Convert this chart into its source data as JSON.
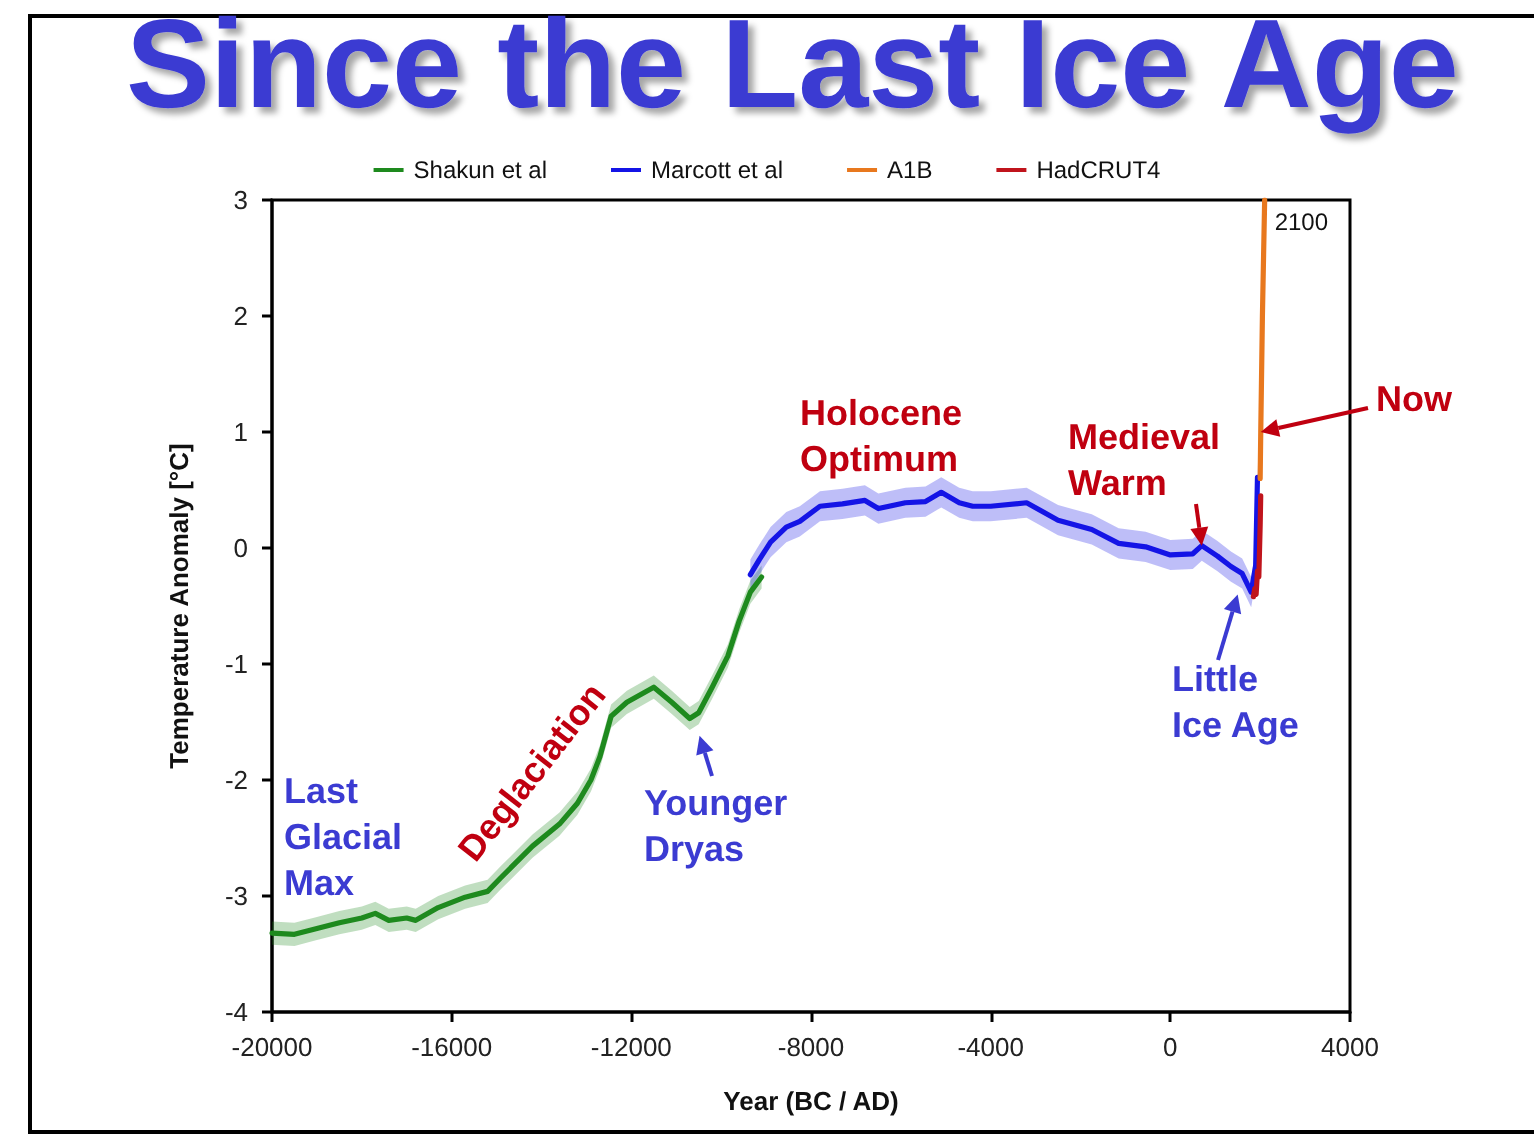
{
  "chart_data": {
    "type": "line",
    "title": "Since the Last Ice Age",
    "xlabel": "Year (BC / AD)",
    "ylabel": "Temperature Anomaly [°C]",
    "xlim": [
      -20000,
      4000
    ],
    "xticks": [
      -20000,
      -16000,
      -12000,
      -8000,
      -4000,
      0,
      4000
    ],
    "ylim": [
      -4,
      3
    ],
    "yticks": [
      -4,
      -3,
      -2,
      -1,
      0,
      1,
      2,
      3
    ],
    "grid": false,
    "legend": "top",
    "marker": "none",
    "line_style": "solid",
    "annotations": [
      "Last Glacial Max",
      "Deglaciation",
      {
        "text": "Younger Dryas",
        "x": -10600,
        "y": -1.47
      },
      "Holocene Optimum",
      {
        "text": "Medieval Warm",
        "x": 700,
        "y": 0.02
      },
      {
        "text": "Little Ice Age",
        "x": 1500,
        "y": -0.4
      },
      {
        "text": "Now",
        "x": 2013,
        "y": 1.0
      },
      {
        "text": "2100",
        "x": 2100,
        "y": 3
      }
    ],
    "series": [
      {
        "name": "Shakun et al",
        "color": "#1e8a1e",
        "x": [
          -20000,
          -19500,
          -19000,
          -18500,
          -18000,
          -17700,
          -17400,
          -17000,
          -16800,
          -16300,
          -15700,
          -15200,
          -14900,
          -14200,
          -13600,
          -13200,
          -12900,
          -12700,
          -12450,
          -12100,
          -11500,
          -11100,
          -10700,
          -10500,
          -10200,
          -9850,
          -9600,
          -9350,
          -9100
        ],
        "values": [
          -3.32,
          -3.33,
          -3.28,
          -3.23,
          -3.19,
          -3.15,
          -3.21,
          -3.19,
          -3.21,
          -3.1,
          -3.01,
          -2.96,
          -2.84,
          -2.57,
          -2.38,
          -2.2,
          -2.0,
          -1.8,
          -1.45,
          -1.33,
          -1.2,
          -1.33,
          -1.47,
          -1.42,
          -1.2,
          -0.93,
          -0.63,
          -0.38,
          -0.25
        ],
        "lower": [
          -3.42,
          -3.43,
          -3.38,
          -3.33,
          -3.29,
          -3.25,
          -3.31,
          -3.29,
          -3.31,
          -3.2,
          -3.11,
          -3.06,
          -2.94,
          -2.67,
          -2.48,
          -2.3,
          -2.1,
          -1.9,
          -1.55,
          -1.43,
          -1.3,
          -1.43,
          -1.57,
          -1.52,
          -1.3,
          -1.03,
          -0.73,
          -0.48,
          -0.35
        ],
        "upper": [
          -3.22,
          -3.23,
          -3.18,
          -3.13,
          -3.09,
          -3.05,
          -3.11,
          -3.09,
          -3.11,
          -3.0,
          -2.91,
          -2.86,
          -2.74,
          -2.47,
          -2.28,
          -2.1,
          -1.9,
          -1.7,
          -1.35,
          -1.23,
          -1.1,
          -1.23,
          -1.37,
          -1.32,
          -1.1,
          -0.83,
          -0.53,
          -0.28,
          -0.15
        ]
      },
      {
        "name": "Marcott et al",
        "color": "#1414e6",
        "x": [
          -9350,
          -9150,
          -8900,
          -8550,
          -8250,
          -7800,
          -7300,
          -6800,
          -6500,
          -5900,
          -5450,
          -5100,
          -4700,
          -4400,
          -4000,
          -3200,
          -2500,
          -1750,
          -1150,
          -550,
          0,
          500,
          700,
          1050,
          1350,
          1600,
          1800,
          1900,
          1940
        ],
        "values": [
          -0.23,
          -0.1,
          0.05,
          0.18,
          0.23,
          0.36,
          0.38,
          0.41,
          0.34,
          0.39,
          0.4,
          0.48,
          0.39,
          0.36,
          0.36,
          0.39,
          0.24,
          0.16,
          0.04,
          0.01,
          -0.06,
          -0.05,
          0.02,
          -0.07,
          -0.16,
          -0.22,
          -0.38,
          -0.15,
          0.61
        ],
        "lower": [
          -0.36,
          -0.23,
          -0.08,
          0.05,
          0.1,
          0.23,
          0.25,
          0.28,
          0.21,
          0.26,
          0.27,
          0.35,
          0.26,
          0.23,
          0.23,
          0.26,
          0.11,
          0.03,
          -0.09,
          -0.12,
          -0.19,
          -0.18,
          -0.11,
          -0.2,
          -0.29,
          -0.35,
          -0.51,
          -0.28,
          0.48
        ],
        "upper": [
          -0.1,
          0.03,
          0.18,
          0.31,
          0.36,
          0.49,
          0.51,
          0.54,
          0.47,
          0.52,
          0.53,
          0.61,
          0.52,
          0.49,
          0.49,
          0.52,
          0.37,
          0.29,
          0.17,
          0.14,
          0.07,
          0.08,
          0.15,
          0.06,
          -0.03,
          -0.09,
          -0.25,
          -0.02,
          0.74
        ]
      },
      {
        "name": "A1B",
        "color": "#e8781e",
        "x": [
          2000,
          2013,
          2050,
          2100
        ],
        "values": [
          0.6,
          1.0,
          2.0,
          3.0
        ]
      },
      {
        "name": "HadCRUT4",
        "color": "#c0141c",
        "x": [
          1850,
          1880,
          1910,
          1940,
          1970,
          2000,
          2012
        ],
        "values": [
          -0.42,
          -0.35,
          -0.4,
          -0.2,
          -0.25,
          0.2,
          0.45
        ]
      }
    ]
  }
}
